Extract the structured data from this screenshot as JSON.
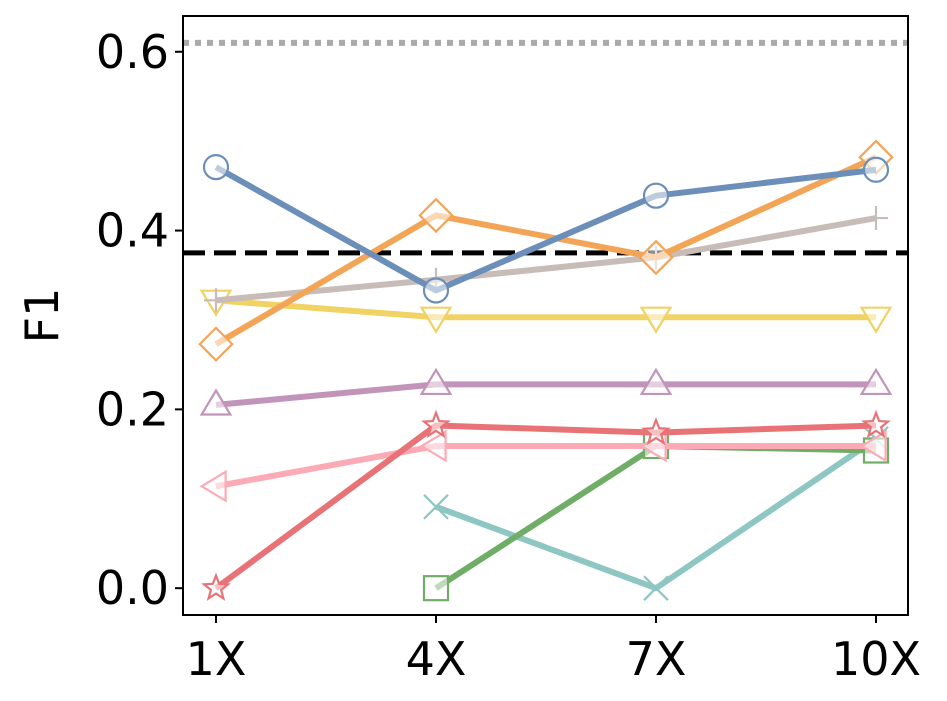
{
  "chart_data": {
    "type": "line",
    "title": "",
    "xlabel": "",
    "ylabel": "F1",
    "categories": [
      "1X",
      "4X",
      "7X",
      "10X"
    ],
    "ylim": [
      -0.03,
      0.64
    ],
    "yticks": [
      0.0,
      0.2,
      0.4,
      0.6
    ],
    "ytick_labels": [
      "0.0",
      "0.2",
      "0.4",
      "0.6"
    ],
    "grid": false,
    "reference_lines": [
      {
        "value": 0.61,
        "style": "dotted",
        "color": "#aaaaaa"
      },
      {
        "value": 0.375,
        "style": "dashed",
        "color": "#000000"
      }
    ],
    "series": [
      {
        "color": "#6b8fb8",
        "marker": "circle",
        "values": [
          0.471,
          0.333,
          0.439,
          0.468
        ]
      },
      {
        "color": "#f3a557",
        "marker": "diamond",
        "values": [
          0.273,
          0.417,
          0.37,
          0.482
        ]
      },
      {
        "color": "#c7bcb8",
        "marker": "plus",
        "values": [
          0.322,
          0.345,
          0.37,
          0.414
        ]
      },
      {
        "color": "#f0d265",
        "marker": "triangle-down",
        "values": [
          0.322,
          0.303,
          0.303,
          0.303
        ]
      },
      {
        "color": "#c294b9",
        "marker": "triangle-up",
        "values": [
          0.205,
          0.228,
          0.228,
          0.228
        ]
      },
      {
        "color": "#e87377",
        "marker": "star",
        "values": [
          0.0,
          0.182,
          0.174,
          0.182
        ]
      },
      {
        "color": "#fcaab5",
        "marker": "triangle-left",
        "values": [
          0.114,
          0.159,
          0.159,
          0.159
        ]
      },
      {
        "color": "#70ad66",
        "marker": "square",
        "values": [
          null,
          0.0,
          0.159,
          0.154
        ]
      },
      {
        "color": "#8dc6c3",
        "marker": "x",
        "values": [
          null,
          0.091,
          0.0,
          0.167
        ]
      }
    ]
  }
}
